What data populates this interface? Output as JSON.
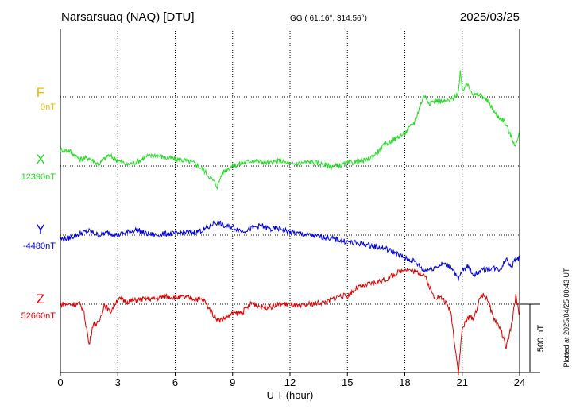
{
  "header": {
    "station": "Narsarsuaq (NAQ)  [DTU]",
    "coords": "GG ( 61.16°, 314.56°)",
    "date": "2025/03/25"
  },
  "footer": {
    "plotted": "Plotted at 2025/04/25 00:43 UT",
    "scale_label": "500 nT"
  },
  "chart_data": {
    "type": "line",
    "xlabel": "U T (hour)",
    "xlim": [
      0,
      24
    ],
    "x_ticks": [
      "0",
      "3",
      "6",
      "9",
      "12",
      "15",
      "18",
      "21",
      "24"
    ],
    "scale_bar_nT": 500,
    "grid": true,
    "series": [
      {
        "name": "F",
        "baseline_label": "0nT",
        "color": "#f2b705",
        "x": [],
        "values": []
      },
      {
        "name": "X",
        "baseline_label": "12390nT",
        "color": "#22dd22",
        "x": [
          0,
          0.5,
          1.0,
          1.5,
          2.0,
          2.5,
          3.0,
          3.5,
          4.0,
          4.5,
          5.0,
          5.5,
          6.0,
          6.5,
          7.0,
          7.5,
          7.8,
          8.0,
          8.2,
          8.4,
          8.6,
          9.0,
          9.5,
          10.0,
          10.5,
          11.0,
          11.5,
          12.0,
          12.5,
          13.0,
          13.5,
          14.0,
          14.5,
          15.0,
          15.5,
          16.0,
          16.5,
          17.0,
          17.5,
          18.0,
          18.5,
          19.0,
          19.3,
          19.6,
          20.0,
          20.4,
          20.8,
          20.9,
          21.0,
          21.3,
          21.6,
          22.0,
          22.4,
          22.8,
          23.2,
          23.6,
          23.8,
          24.0
        ],
        "values": [
          120,
          110,
          50,
          60,
          10,
          80,
          40,
          10,
          30,
          70,
          80,
          60,
          50,
          40,
          20,
          -30,
          -80,
          -110,
          -150,
          -70,
          -30,
          0,
          20,
          40,
          30,
          20,
          40,
          10,
          20,
          30,
          20,
          0,
          0,
          20,
          30,
          40,
          90,
          160,
          200,
          240,
          320,
          520,
          460,
          480,
          470,
          480,
          540,
          680,
          560,
          600,
          520,
          520,
          460,
          370,
          330,
          200,
          150,
          240
        ]
      },
      {
        "name": "Y",
        "baseline_label": "-4480nT",
        "color": "#0000dd",
        "x": [
          0,
          0.5,
          1.0,
          1.5,
          2.0,
          2.5,
          3.0,
          3.5,
          4.0,
          4.5,
          5.0,
          5.5,
          6.0,
          6.5,
          7.0,
          7.5,
          7.8,
          8.0,
          8.3,
          8.6,
          9.0,
          9.5,
          10.0,
          10.5,
          11.0,
          11.5,
          12.0,
          13.0,
          14.0,
          15.0,
          16.0,
          17.0,
          17.5,
          18.0,
          18.5,
          19.0,
          19.5,
          20.0,
          20.5,
          20.8,
          21.0,
          21.3,
          21.6,
          22.0,
          22.5,
          23.0,
          23.3,
          23.6,
          23.8,
          24.0
        ],
        "values": [
          -30,
          -20,
          10,
          30,
          0,
          20,
          0,
          20,
          40,
          10,
          0,
          10,
          10,
          20,
          20,
          40,
          60,
          90,
          90,
          60,
          60,
          30,
          50,
          70,
          40,
          50,
          20,
          0,
          -20,
          -50,
          -70,
          -100,
          -130,
          -170,
          -190,
          -260,
          -240,
          -210,
          -240,
          -330,
          -260,
          -230,
          -290,
          -260,
          -240,
          -250,
          -170,
          -230,
          -170,
          -170
        ]
      },
      {
        "name": "Z",
        "baseline_label": "52660nT",
        "color": "#dd0000",
        "x": [
          0,
          0.3,
          0.6,
          1.0,
          1.2,
          1.4,
          1.5,
          1.7,
          2.0,
          2.3,
          2.6,
          3.0,
          3.5,
          4.0,
          4.5,
          5.0,
          5.5,
          6.0,
          6.5,
          7.0,
          7.5,
          8.0,
          8.3,
          8.6,
          9.0,
          9.5,
          10.0,
          10.5,
          11.0,
          11.5,
          12.0,
          12.5,
          13.0,
          13.5,
          14.0,
          14.5,
          15.0,
          15.5,
          16.0,
          16.5,
          17.0,
          17.5,
          18.0,
          18.5,
          19.0,
          19.5,
          20.0,
          20.4,
          20.8,
          21.0,
          21.3,
          21.6,
          22.0,
          22.3,
          22.6,
          23.0,
          23.3,
          23.6,
          23.8,
          24.0
        ],
        "values": [
          0,
          0,
          0,
          0,
          -40,
          -200,
          -300,
          -150,
          -140,
          0,
          -60,
          40,
          20,
          30,
          40,
          40,
          60,
          50,
          50,
          40,
          30,
          -80,
          -120,
          -100,
          -70,
          -60,
          10,
          -20,
          -20,
          0,
          0,
          -20,
          0,
          10,
          20,
          60,
          60,
          120,
          140,
          160,
          180,
          220,
          260,
          240,
          220,
          60,
          40,
          -50,
          -500,
          -180,
          -100,
          -100,
          70,
          50,
          -90,
          -180,
          -320,
          -140,
          60,
          -80
        ]
      }
    ]
  }
}
